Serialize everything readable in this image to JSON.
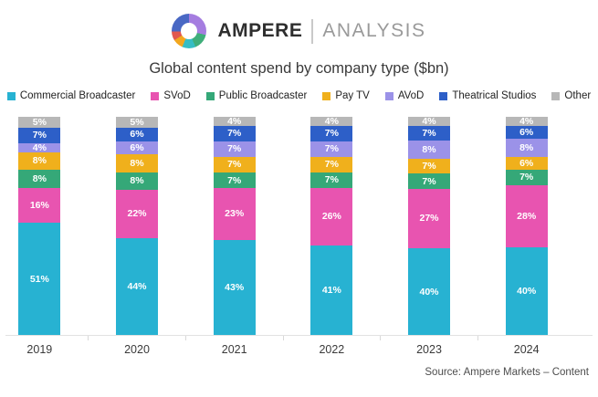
{
  "logo": {
    "brand": "AMPERE",
    "sub": "ANALYSIS"
  },
  "title": "Global content spend by company type ($bn)",
  "source": "Source: Ampere Markets – Content",
  "chart_data": {
    "type": "bar",
    "stacked": true,
    "percent_stacked": true,
    "unit": "%",
    "legend_position": "top",
    "value_labels": "inside-white",
    "categories": [
      "2019",
      "2020",
      "2021",
      "2022",
      "2023",
      "2024"
    ],
    "series": [
      {
        "name": "Commercial Broadcaster",
        "color": "#27b2d2",
        "values": [
          51,
          44,
          43,
          41,
          40,
          40
        ]
      },
      {
        "name": "SVoD",
        "color": "#e854b0",
        "values": [
          16,
          22,
          23,
          26,
          27,
          28
        ]
      },
      {
        "name": "Public Broadcaster",
        "color": "#35a878",
        "values": [
          8,
          8,
          7,
          7,
          7,
          7
        ]
      },
      {
        "name": "Pay TV",
        "color": "#f0b01c",
        "values": [
          8,
          8,
          7,
          7,
          7,
          6
        ]
      },
      {
        "name": "AVoD",
        "color": "#9b92e8",
        "values": [
          4,
          6,
          7,
          7,
          8,
          8
        ]
      },
      {
        "name": "Theatrical Studios",
        "color": "#2d5fc8",
        "values": [
          7,
          6,
          7,
          7,
          7,
          6
        ]
      },
      {
        "name": "Other",
        "color": "#b7b7b7",
        "values": [
          5,
          5,
          4,
          4,
          4,
          4
        ]
      }
    ]
  }
}
